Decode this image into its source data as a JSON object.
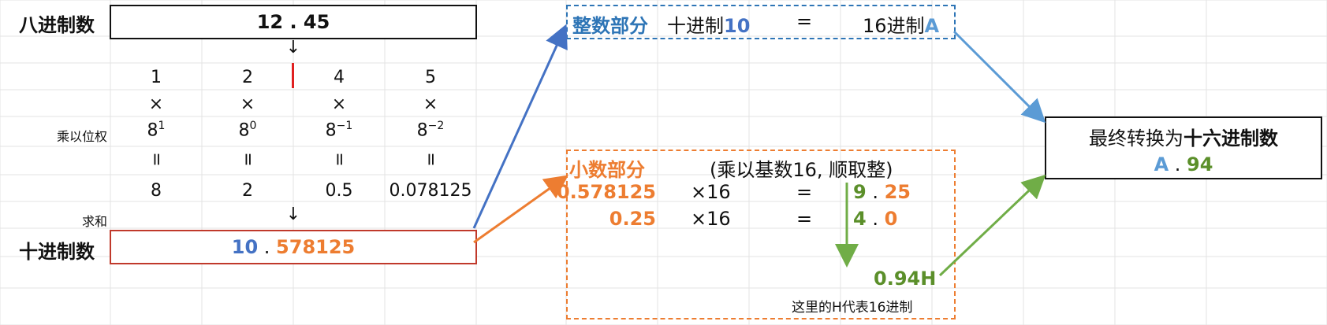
{
  "octal": {
    "label": "八进制数",
    "value": "12 . 45"
  },
  "digits": [
    "1",
    "2",
    "4",
    "5"
  ],
  "times": "×",
  "weights": {
    "label": "乘以位权",
    "items": [
      {
        "base": "8",
        "exp": "1"
      },
      {
        "base": "8",
        "exp": "0"
      },
      {
        "base": "8",
        "exp": "−1"
      },
      {
        "base": "8",
        "exp": "−2"
      }
    ]
  },
  "equals_sym": "=",
  "products": [
    "8",
    "2",
    "0.5",
    "0.078125"
  ],
  "sum_label": "求和",
  "down_arrow": "↓",
  "decimal": {
    "label": "十进制数",
    "int": "10",
    "dot": " . ",
    "frac": "578125"
  },
  "integer_part": {
    "label": "整数部分",
    "dec_text": "十进制",
    "dec_value": "10",
    "eq": "=",
    "hex_text": "16进制",
    "hex_value": "A"
  },
  "fraction_part": {
    "label": "小数部分",
    "note": "(乘以基数16, 顺取整)",
    "rows": [
      {
        "value": "0.578125",
        "mult": "×16",
        "eq": "=",
        "int": "9",
        "dot": " . ",
        "frac": "25"
      },
      {
        "value": "0.25",
        "mult": "×16",
        "eq": "=",
        "int": "4",
        "dot": " . ",
        "frac": "0"
      }
    ],
    "result": "0.94H",
    "footnote": "这里的H代表16进制"
  },
  "final": {
    "title_prefix": "最终转换为",
    "title_bold": "十六进制数",
    "int": "A",
    "dot": " . ",
    "frac": "94"
  },
  "colors": {
    "blue": "#4472c4",
    "light_blue": "#5b9bd5",
    "orange": "#ed7d31",
    "green": "#70ad47",
    "red": "#c00000"
  }
}
